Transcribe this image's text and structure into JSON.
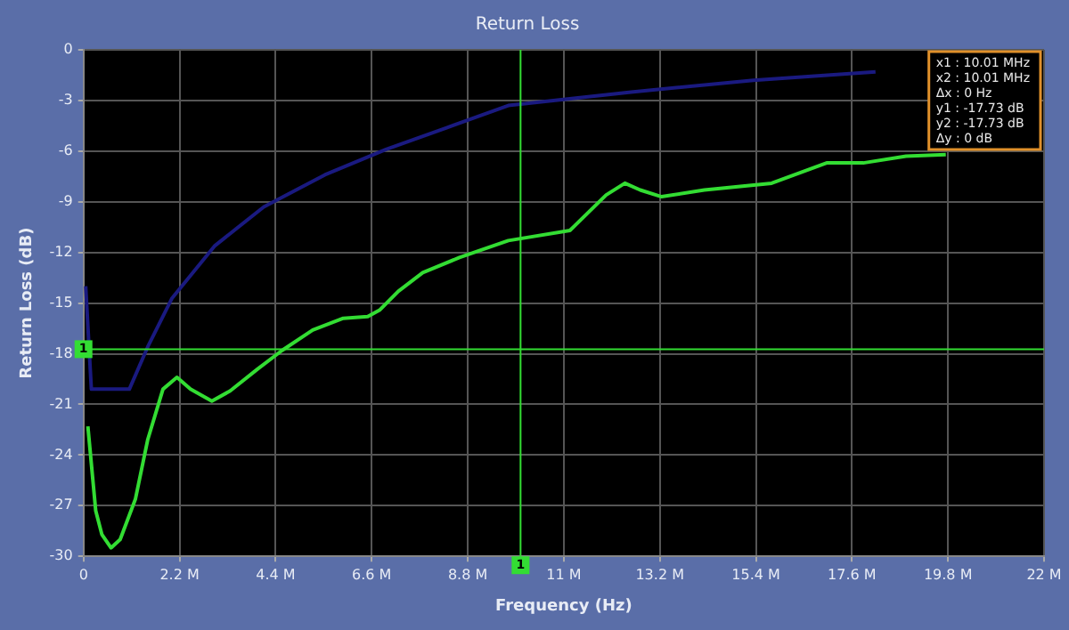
{
  "chart_data": {
    "type": "line",
    "title": "Return Loss",
    "xlabel": "Frequency (Hz)",
    "ylabel": "Return Loss (dB)",
    "xlim": [
      0,
      22
    ],
    "xticks": [
      0,
      {
        "value": 2.2,
        "label": "2.2 M"
      },
      {
        "value": 4.4,
        "label": "4.4 M"
      },
      {
        "value": 6.6,
        "label": "6.6 M"
      },
      {
        "value": 8.8,
        "label": "8.8 M"
      },
      {
        "value": 11,
        "label": "11 M"
      },
      {
        "value": 13.2,
        "label": "13.2 M"
      },
      {
        "value": 15.4,
        "label": "15.4 M"
      },
      {
        "value": 17.6,
        "label": "17.6 M"
      },
      {
        "value": 19.8,
        "label": "19.8 M"
      },
      {
        "value": 22,
        "label": "22 M"
      }
    ],
    "ylim": [
      -30,
      0
    ],
    "yticks": [
      -30,
      -27,
      -24,
      -21,
      -18,
      -15,
      -12,
      -9,
      -6,
      -3,
      0
    ],
    "grid": true,
    "marker": "none",
    "line_style": "solid",
    "series": [
      {
        "color": "#33dd33",
        "x": [
          0.1,
          0.28,
          0.42,
          0.63,
          0.84,
          1.19,
          1.47,
          1.82,
          2.14,
          2.45,
          2.94,
          3.36,
          3.99,
          4.55,
          5.25,
          5.95,
          6.51,
          6.79,
          7.21,
          7.77,
          8.61,
          9.73,
          11.14,
          11.97,
          12.4,
          12.75,
          13.24,
          14.22,
          15.76,
          17.02,
          17.86,
          18.84,
          19.75
        ],
        "values": [
          -22.3,
          -27.3,
          -28.7,
          -29.5,
          -29,
          -26.6,
          -23.1,
          -20.1,
          -19.4,
          -20.1,
          -20.8,
          -20.2,
          -18.9,
          -17.8,
          -16.6,
          -15.9,
          -15.8,
          -15.4,
          -14.3,
          -13.2,
          -12.3,
          -11.3,
          -10.7,
          -8.6,
          -7.9,
          -8.3,
          -8.7,
          -8.3,
          -7.9,
          -6.7,
          -6.7,
          -6.3,
          -6.2
        ]
      },
      {
        "color": "#1a1a80",
        "x": [
          0.05,
          0.18,
          1.05,
          1.47,
          2.03,
          3.01,
          4.13,
          5.53,
          6.93,
          8.33,
          9.73,
          12.54,
          15.34,
          18.14
        ],
        "values": [
          -14,
          -20.1,
          -20.1,
          -17.6,
          -14.7,
          -11.6,
          -9.3,
          -7.4,
          -5.9,
          -4.6,
          -3.3,
          -2.5,
          -1.8,
          -1.3
        ]
      }
    ],
    "ref_lines": [
      {
        "axis": "y",
        "value": -17.73,
        "color": "#33dd33"
      },
      {
        "axis": "x",
        "value": 10.01,
        "color": "#33dd33"
      }
    ],
    "annotations": [
      "x1 : 10.01 MHz",
      "x2 : 10.01 MHz",
      "Δx : 0 Hz",
      "y1 : -17.73 dB",
      "y2 : -17.73 dB",
      "Δy : 0 dB",
      {
        "text": "1",
        "y": -17.73
      },
      {
        "text": "1",
        "x": 10.01
      }
    ]
  }
}
